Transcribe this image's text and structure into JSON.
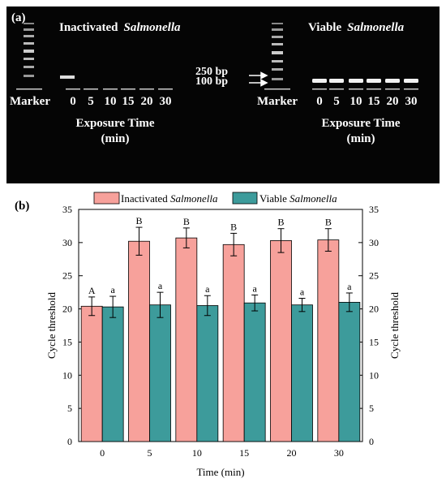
{
  "gel_panel": {
    "panel_label": "(a)",
    "left_title_prefix": "Inactivated",
    "left_title_italic": "Salmonella",
    "right_title_prefix": "Viable",
    "right_title_italic": "Salmonella",
    "marker_label": "Marker",
    "lane_labels": [
      "0",
      "5",
      "10",
      "15",
      "20",
      "30"
    ],
    "size_marker_1": "250 bp",
    "size_marker_2": "100 bp",
    "xlabel_line1": "Exposure Time",
    "xlabel_line2": "(min)",
    "colors": {
      "background": "#050505",
      "text": "#ffffff",
      "band": "#ffffff"
    }
  },
  "chart_data": {
    "type": "bar",
    "panel_label": "(b)",
    "categories": [
      "0",
      "5",
      "10",
      "15",
      "20",
      "30"
    ],
    "xlabel": "Time (min)",
    "ylabel": "Cycle threshold",
    "ylabel_right": "Cycle threshold",
    "ylim": [
      0,
      35
    ],
    "yticks": [
      0,
      5,
      10,
      15,
      20,
      25,
      30,
      35
    ],
    "legend_position": "top",
    "series": [
      {
        "name_prefix": "Inactivated",
        "name_italic": "Salmonella",
        "values": [
          20.4,
          30.2,
          30.7,
          29.7,
          30.3,
          30.4
        ],
        "errors": [
          1.4,
          2.1,
          1.5,
          1.7,
          1.8,
          1.7
        ],
        "letters": [
          "A",
          "B",
          "B",
          "B",
          "B",
          "B"
        ],
        "color": "#f7a19b"
      },
      {
        "name_prefix": "Viable",
        "name_italic": "Salmonella",
        "values": [
          20.3,
          20.6,
          20.5,
          20.9,
          20.6,
          21.0
        ],
        "errors": [
          1.6,
          1.9,
          1.5,
          1.2,
          1.0,
          1.4
        ],
        "letters": [
          "a",
          "a",
          "a",
          "a",
          "a",
          "a"
        ],
        "color": "#3d9b9b"
      }
    ]
  }
}
